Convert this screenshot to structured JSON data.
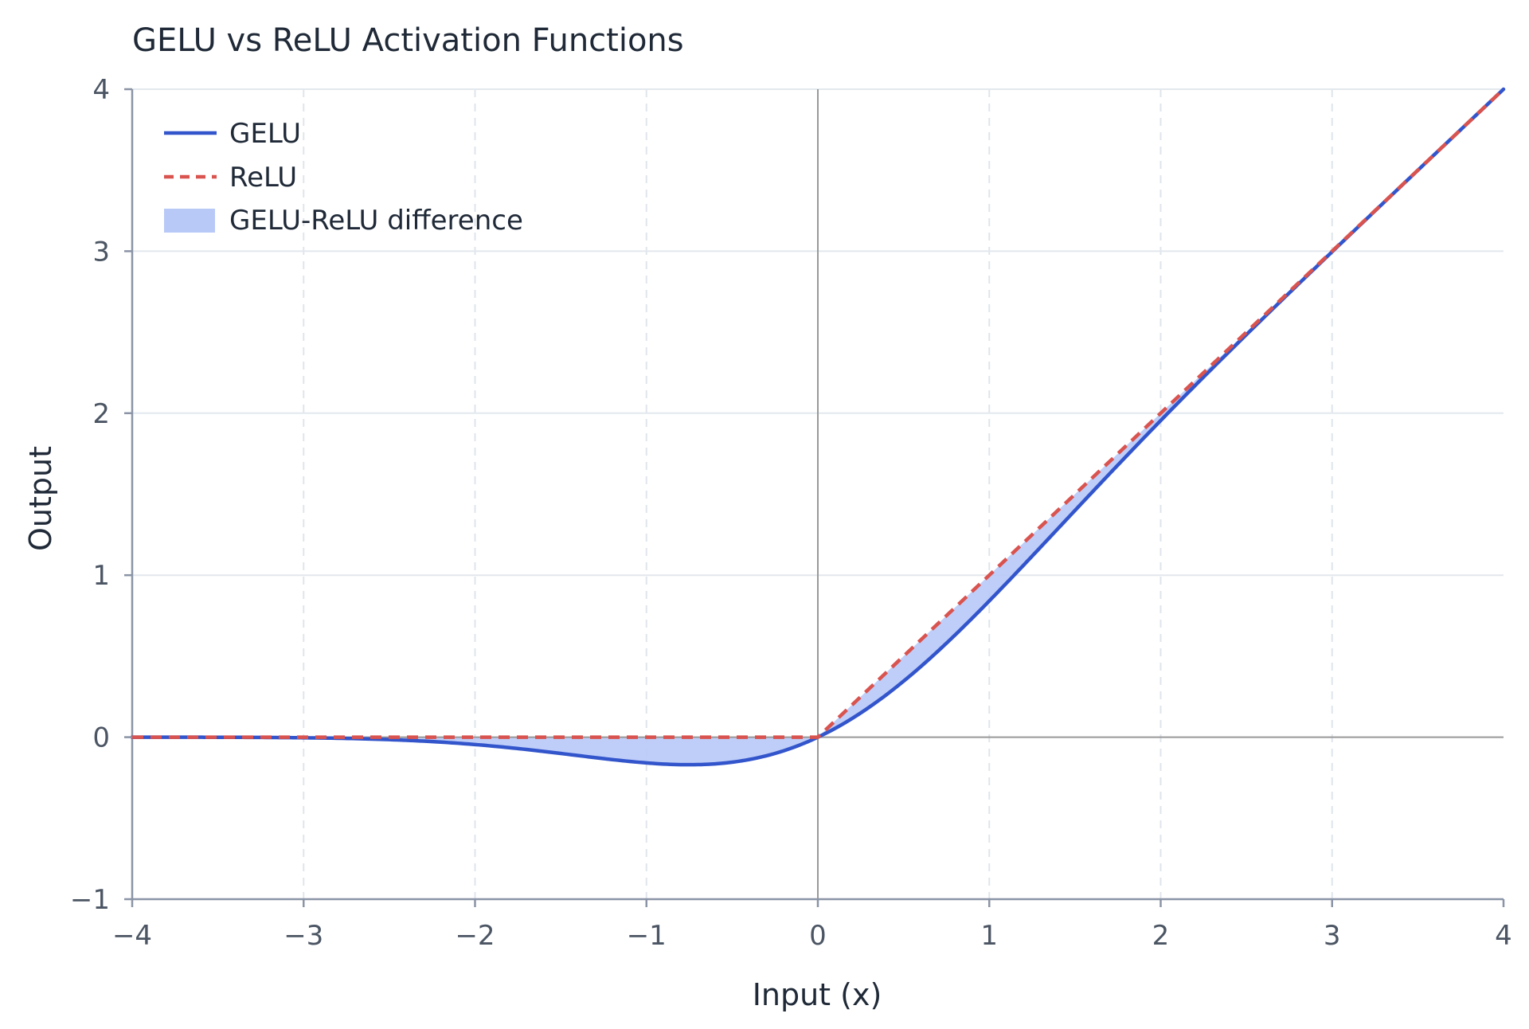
{
  "chart_data": {
    "type": "line",
    "title": "GELU vs ReLU Activation Functions",
    "xlabel": "Input (x)",
    "ylabel": "Output",
    "xlim": [
      -4,
      4
    ],
    "ylim": [
      -1,
      4
    ],
    "x_ticks": [
      -4,
      -3,
      -2,
      -1,
      0,
      1,
      2,
      3,
      4
    ],
    "x_tick_labels": [
      "−4",
      "−3",
      "−2",
      "−1",
      "0",
      "1",
      "2",
      "3",
      "4"
    ],
    "y_ticks": [
      -1,
      0,
      1,
      2,
      3,
      4
    ],
    "y_tick_labels": [
      "−1",
      "0",
      "1",
      "2",
      "3",
      "4"
    ],
    "grid": true,
    "legend_position": "top-left",
    "series": [
      {
        "name": "GELU",
        "style": "solid",
        "color": "#3355cc",
        "x": [
          -4,
          -3.5,
          -3,
          -2.5,
          -2,
          -1.75,
          -1.5,
          -1.25,
          -1,
          -0.75,
          -0.5,
          -0.25,
          0,
          0.25,
          0.5,
          0.75,
          1,
          1.25,
          1.5,
          1.75,
          2,
          2.5,
          3,
          3.5,
          4
        ],
        "values": [
          -0.0001,
          -0.0008,
          -0.004,
          -0.0155,
          -0.0455,
          -0.0702,
          -0.1002,
          -0.1321,
          -0.1587,
          -0.17,
          -0.1543,
          -0.0994,
          0,
          0.1506,
          0.3457,
          0.58,
          0.8413,
          1.1179,
          1.3998,
          1.6798,
          1.9545,
          2.4845,
          2.996,
          3.4992,
          3.9999
        ]
      },
      {
        "name": "ReLU",
        "style": "dashed",
        "color": "#d9534f",
        "x": [
          -4,
          0,
          4
        ],
        "values": [
          0,
          0,
          4
        ]
      }
    ],
    "fill": {
      "name": "GELU-ReLU difference",
      "between": [
        "GELU",
        "ReLU"
      ],
      "color": "#b8c9f7"
    }
  },
  "legend": {
    "items": [
      "GELU",
      "ReLU",
      "GELU-ReLU difference"
    ]
  }
}
